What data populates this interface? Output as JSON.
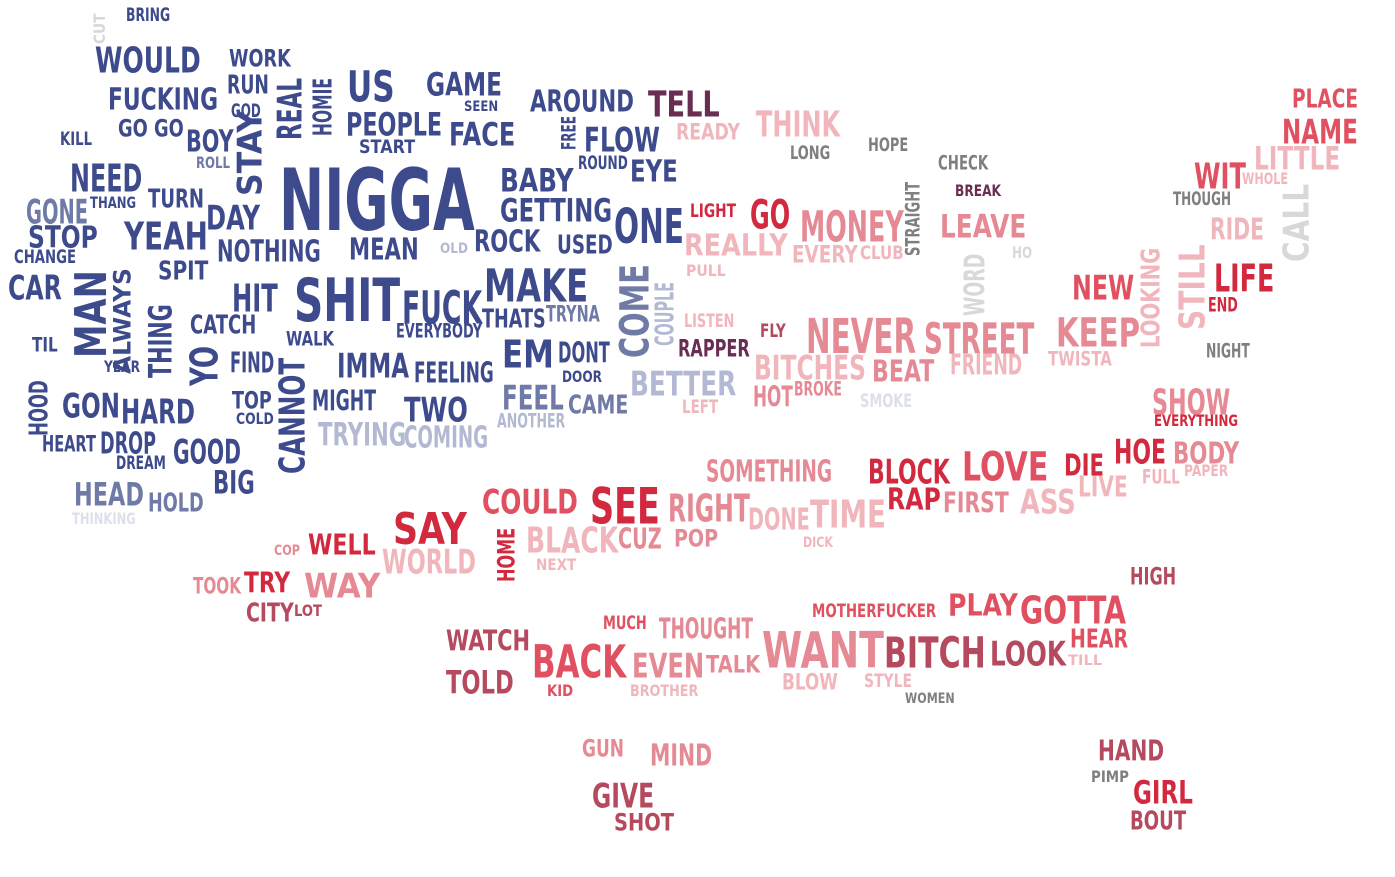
{
  "palette": {
    "navy": "#3d4a8c",
    "slate": "#6f7aa6",
    "lavender": "#b3b8d3",
    "pale": "#dde0eb",
    "plum": "#6a2d52",
    "crimson": "#d2293f",
    "red": "#e05060",
    "rose": "#e58a94",
    "pink": "#f1b6bc",
    "maroon": "#b5495e",
    "gray": "#7f7f7f",
    "lightgray": "#d8d8d8"
  },
  "words": [
    {
      "text": "BRING",
      "color": "navy"
    },
    {
      "text": "CUT",
      "color": "lightgray"
    },
    {
      "text": "WOULD",
      "color": "navy"
    },
    {
      "text": "WORK",
      "color": "navy"
    },
    {
      "text": "RUN",
      "color": "navy"
    },
    {
      "text": "FUCKING",
      "color": "navy"
    },
    {
      "text": "GOD",
      "color": "navy"
    },
    {
      "text": "KILL",
      "color": "navy"
    },
    {
      "text": "GO GO",
      "color": "navy"
    },
    {
      "text": "BOY",
      "color": "navy"
    },
    {
      "text": "ROLL",
      "color": "slate"
    },
    {
      "text": "STAY",
      "color": "navy"
    },
    {
      "text": "REAL",
      "color": "navy"
    },
    {
      "text": "HOMIE",
      "color": "navy"
    },
    {
      "text": "US",
      "color": "navy"
    },
    {
      "text": "GAME",
      "color": "navy"
    },
    {
      "text": "SEEN",
      "color": "navy"
    },
    {
      "text": "AROUND",
      "color": "navy"
    },
    {
      "text": "TELL",
      "color": "plum"
    },
    {
      "text": "READY",
      "color": "pink"
    },
    {
      "text": "THINK",
      "color": "pink"
    },
    {
      "text": "LONG",
      "color": "gray"
    },
    {
      "text": "HOPE",
      "color": "gray"
    },
    {
      "text": "PEOPLE",
      "color": "navy"
    },
    {
      "text": "START",
      "color": "navy"
    },
    {
      "text": "FACE",
      "color": "navy"
    },
    {
      "text": "FREE",
      "color": "navy"
    },
    {
      "text": "FLOW",
      "color": "navy"
    },
    {
      "text": "ROUND",
      "color": "navy"
    },
    {
      "text": "EYE",
      "color": "navy"
    },
    {
      "text": "NEED",
      "color": "navy"
    },
    {
      "text": "TURN",
      "color": "navy"
    },
    {
      "text": "GONE",
      "color": "slate"
    },
    {
      "text": "THANG",
      "color": "navy"
    },
    {
      "text": "DAY",
      "color": "navy"
    },
    {
      "text": "NIGGA",
      "color": "navy"
    },
    {
      "text": "BABY",
      "color": "navy"
    },
    {
      "text": "GETTING",
      "color": "navy"
    },
    {
      "text": "ONE",
      "color": "navy"
    },
    {
      "text": "LIGHT",
      "color": "crimson"
    },
    {
      "text": "GO",
      "color": "crimson"
    },
    {
      "text": "MONEY",
      "color": "rose"
    },
    {
      "text": "STRAIGHT",
      "color": "gray"
    },
    {
      "text": "CHECK",
      "color": "gray"
    },
    {
      "text": "BREAK",
      "color": "plum"
    },
    {
      "text": "LEAVE",
      "color": "rose"
    },
    {
      "text": "HO",
      "color": "lightgray"
    },
    {
      "text": "PLACE",
      "color": "red"
    },
    {
      "text": "NAME",
      "color": "red"
    },
    {
      "text": "LITTLE",
      "color": "pink"
    },
    {
      "text": "WIT",
      "color": "red"
    },
    {
      "text": "WHOLE",
      "color": "pink"
    },
    {
      "text": "THOUGH",
      "color": "gray"
    },
    {
      "text": "RIDE",
      "color": "pink"
    },
    {
      "text": "CALL",
      "color": "lightgray"
    },
    {
      "text": "STOP",
      "color": "navy"
    },
    {
      "text": "YEAH",
      "color": "navy"
    },
    {
      "text": "NOTHING",
      "color": "navy"
    },
    {
      "text": "MEAN",
      "color": "navy"
    },
    {
      "text": "OLD",
      "color": "lavender"
    },
    {
      "text": "ROCK",
      "color": "navy"
    },
    {
      "text": "USED",
      "color": "navy"
    },
    {
      "text": "REALLY",
      "color": "pink"
    },
    {
      "text": "EVERY",
      "color": "pink"
    },
    {
      "text": "CLUB",
      "color": "pink"
    },
    {
      "text": "PULL",
      "color": "pink"
    },
    {
      "text": "CHANGE",
      "color": "navy"
    },
    {
      "text": "CAR",
      "color": "navy"
    },
    {
      "text": "SPIT",
      "color": "navy"
    },
    {
      "text": "MAN",
      "color": "navy"
    },
    {
      "text": "ALWAYS",
      "color": "navy"
    },
    {
      "text": "HIT",
      "color": "navy"
    },
    {
      "text": "SHIT",
      "color": "navy"
    },
    {
      "text": "FUCK",
      "color": "navy"
    },
    {
      "text": "MAKE",
      "color": "navy"
    },
    {
      "text": "COME",
      "color": "slate"
    },
    {
      "text": "COUPLE",
      "color": "lavender"
    },
    {
      "text": "WORD",
      "color": "lightgray"
    },
    {
      "text": "LOOKING",
      "color": "pink"
    },
    {
      "text": "STILL",
      "color": "pink"
    },
    {
      "text": "LIFE",
      "color": "crimson"
    },
    {
      "text": "END",
      "color": "crimson"
    },
    {
      "text": "NEW",
      "color": "red"
    },
    {
      "text": "CATCH",
      "color": "navy"
    },
    {
      "text": "THING",
      "color": "navy"
    },
    {
      "text": "EVERYBODY",
      "color": "navy"
    },
    {
      "text": "THATS",
      "color": "navy"
    },
    {
      "text": "TRYNA",
      "color": "slate"
    },
    {
      "text": "LISTEN",
      "color": "pink"
    },
    {
      "text": "FLY",
      "color": "maroon"
    },
    {
      "text": "NEVER",
      "color": "rose"
    },
    {
      "text": "STREET",
      "color": "rose"
    },
    {
      "text": "KEEP",
      "color": "rose"
    },
    {
      "text": "TIL",
      "color": "navy"
    },
    {
      "text": "WALK",
      "color": "navy"
    },
    {
      "text": "YO",
      "color": "navy"
    },
    {
      "text": "IMMA",
      "color": "navy"
    },
    {
      "text": "EM",
      "color": "navy"
    },
    {
      "text": "DONT",
      "color": "navy"
    },
    {
      "text": "RAPPER",
      "color": "plum"
    },
    {
      "text": "TWISTA",
      "color": "pink"
    },
    {
      "text": "NIGHT",
      "color": "gray"
    },
    {
      "text": "YEAR",
      "color": "navy"
    },
    {
      "text": "FIND",
      "color": "navy"
    },
    {
      "text": "FEELING",
      "color": "navy"
    },
    {
      "text": "BITCHES",
      "color": "pink"
    },
    {
      "text": "BEAT",
      "color": "rose"
    },
    {
      "text": "FRIEND",
      "color": "pink"
    },
    {
      "text": "HOOD",
      "color": "navy"
    },
    {
      "text": "GON",
      "color": "navy"
    },
    {
      "text": "HARD",
      "color": "navy"
    },
    {
      "text": "TOP",
      "color": "navy"
    },
    {
      "text": "CANNOT",
      "color": "navy"
    },
    {
      "text": "MIGHT",
      "color": "navy"
    },
    {
      "text": "DOOR",
      "color": "navy"
    },
    {
      "text": "BETTER",
      "color": "lavender"
    },
    {
      "text": "HOT",
      "color": "rose"
    },
    {
      "text": "BROKE",
      "color": "rose"
    },
    {
      "text": "SMOKE",
      "color": "pale"
    },
    {
      "text": "SHOW",
      "color": "rose"
    },
    {
      "text": "COLD",
      "color": "navy"
    },
    {
      "text": "TWO",
      "color": "navy"
    },
    {
      "text": "FEEL",
      "color": "slate"
    },
    {
      "text": "CAME",
      "color": "slate"
    },
    {
      "text": "LEFT",
      "color": "pink"
    },
    {
      "text": "EVERYTHING",
      "color": "crimson"
    },
    {
      "text": "HEART",
      "color": "navy"
    },
    {
      "text": "DROP",
      "color": "navy"
    },
    {
      "text": "TRYING",
      "color": "lavender"
    },
    {
      "text": "COMING",
      "color": "lavender"
    },
    {
      "text": "ANOTHER",
      "color": "lavender"
    },
    {
      "text": "DREAM",
      "color": "navy"
    },
    {
      "text": "GOOD",
      "color": "navy"
    },
    {
      "text": "HOE",
      "color": "crimson"
    },
    {
      "text": "BODY",
      "color": "rose"
    },
    {
      "text": "DIE",
      "color": "crimson"
    },
    {
      "text": "FULL",
      "color": "pink"
    },
    {
      "text": "PAPER",
      "color": "pink"
    },
    {
      "text": "SOMETHING",
      "color": "rose"
    },
    {
      "text": "BLOCK",
      "color": "crimson"
    },
    {
      "text": "LOVE",
      "color": "red"
    },
    {
      "text": "LIVE",
      "color": "pink"
    },
    {
      "text": "HEAD",
      "color": "slate"
    },
    {
      "text": "HOLD",
      "color": "slate"
    },
    {
      "text": "BIG",
      "color": "navy"
    },
    {
      "text": "THINKING",
      "color": "pale"
    },
    {
      "text": "COULD",
      "color": "red"
    },
    {
      "text": "SEE",
      "color": "crimson"
    },
    {
      "text": "RIGHT",
      "color": "rose"
    },
    {
      "text": "DONE",
      "color": "pink"
    },
    {
      "text": "TIME",
      "color": "pink"
    },
    {
      "text": "RAP",
      "color": "crimson"
    },
    {
      "text": "FIRST",
      "color": "rose"
    },
    {
      "text": "ASS",
      "color": "pink"
    },
    {
      "text": "SAY",
      "color": "crimson"
    },
    {
      "text": "HOME",
      "color": "crimson"
    },
    {
      "text": "BLACK",
      "color": "pink"
    },
    {
      "text": "CUZ",
      "color": "rose"
    },
    {
      "text": "POP",
      "color": "rose"
    },
    {
      "text": "DICK",
      "color": "pink"
    },
    {
      "text": "COP",
      "color": "rose"
    },
    {
      "text": "WELL",
      "color": "crimson"
    },
    {
      "text": "WORLD",
      "color": "pink"
    },
    {
      "text": "NEXT",
      "color": "pink"
    },
    {
      "text": "TOOK",
      "color": "rose"
    },
    {
      "text": "TRY",
      "color": "crimson"
    },
    {
      "text": "WAY",
      "color": "rose"
    },
    {
      "text": "CITY",
      "color": "maroon"
    },
    {
      "text": "LOT",
      "color": "maroon"
    },
    {
      "text": "HIGH",
      "color": "maroon"
    },
    {
      "text": "MOTHERFUCKER",
      "color": "red"
    },
    {
      "text": "PLAY",
      "color": "red"
    },
    {
      "text": "GOTTA",
      "color": "red"
    },
    {
      "text": "MUCH",
      "color": "red"
    },
    {
      "text": "THOUGHT",
      "color": "rose"
    },
    {
      "text": "WATCH",
      "color": "maroon"
    },
    {
      "text": "HEAR",
      "color": "red"
    },
    {
      "text": "BACK",
      "color": "red"
    },
    {
      "text": "EVEN",
      "color": "rose"
    },
    {
      "text": "TALK",
      "color": "rose"
    },
    {
      "text": "WANT",
      "color": "rose"
    },
    {
      "text": "BITCH",
      "color": "maroon"
    },
    {
      "text": "LOOK",
      "color": "maroon"
    },
    {
      "text": "TILL",
      "color": "pink"
    },
    {
      "text": "TOLD",
      "color": "maroon"
    },
    {
      "text": "KID",
      "color": "red"
    },
    {
      "text": "BROTHER",
      "color": "pink"
    },
    {
      "text": "BLOW",
      "color": "pink"
    },
    {
      "text": "STYLE",
      "color": "pink"
    },
    {
      "text": "WOMEN",
      "color": "gray"
    },
    {
      "text": "GUN",
      "color": "rose"
    },
    {
      "text": "MIND",
      "color": "rose"
    },
    {
      "text": "HAND",
      "color": "maroon"
    },
    {
      "text": "PIMP",
      "color": "gray"
    },
    {
      "text": "GIRL",
      "color": "crimson"
    },
    {
      "text": "GIVE",
      "color": "maroon"
    },
    {
      "text": "SHOT",
      "color": "maroon"
    },
    {
      "text": "BOUT",
      "color": "maroon"
    }
  ]
}
